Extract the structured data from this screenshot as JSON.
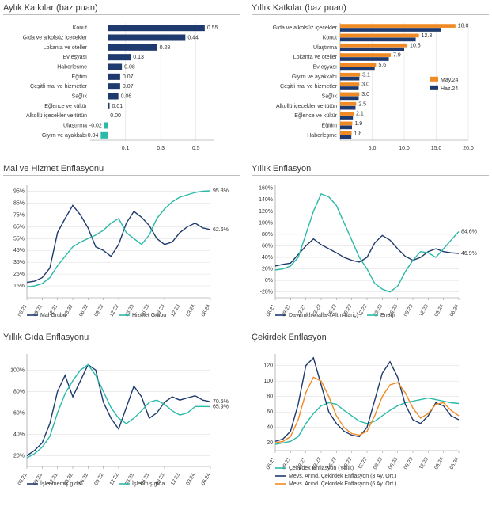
{
  "colors": {
    "navy": "#1f3a6e",
    "teal": "#2bb9a9",
    "orange": "#f08a24",
    "grid": "#d9d9d9",
    "axis": "#888888",
    "text": "#333333",
    "bg": "#ffffff"
  },
  "label_fontsize": 7,
  "title_fontsize": 11,
  "x_labels_quarterly": [
    "06.21",
    "09.21",
    "12.21",
    "03.22",
    "06.22",
    "09.22",
    "12.22",
    "03.23",
    "06.23",
    "09.23",
    "12.23",
    "03.24",
    "06.24"
  ],
  "panel_bar_left": {
    "title": "Aylık Katkılar (baz puan)",
    "type": "bar-horizontal",
    "bar_color_ref": "navy",
    "neg_bar_color_ref": "teal",
    "xlim": [
      -0.1,
      0.6
    ],
    "xticks": [
      0.1,
      0.3,
      0.5
    ],
    "categories": [
      {
        "label": "Konut",
        "value": 0.55
      },
      {
        "label": "Gıda ve alkolsüz içecekler",
        "value": 0.44
      },
      {
        "label": "Lokanta ve oteller",
        "value": 0.28
      },
      {
        "label": "Ev eşyası",
        "value": 0.13
      },
      {
        "label": "Haberleşme",
        "value": 0.08
      },
      {
        "label": "Eğitim",
        "value": 0.07
      },
      {
        "label": "Çeşitli mal ve hizmetler",
        "value": 0.07
      },
      {
        "label": "Sağlık",
        "value": 0.06
      },
      {
        "label": "Eğlence ve kültür",
        "value": 0.01
      },
      {
        "label": "Alkollü içecekler ve tütün",
        "value": 0.0
      },
      {
        "label": "Ulaştırma",
        "value": -0.02
      },
      {
        "label": "Giyim ve ayakkabı",
        "value": -0.04
      }
    ]
  },
  "panel_bar_right": {
    "title": "Yıllık Katkılar (baz puan)",
    "type": "bar-horizontal-group",
    "series": [
      {
        "label": "May.24",
        "color_ref": "orange"
      },
      {
        "label": "Haz.24",
        "color_ref": "navy"
      }
    ],
    "xlim": [
      0,
      20
    ],
    "xticks": [
      5.0,
      10.0,
      15.0,
      20.0
    ],
    "categories": [
      {
        "label": "Gıda ve alkolsüz içecekler",
        "values": [
          18.0,
          15.7
        ]
      },
      {
        "label": "Konut",
        "values": [
          12.3,
          11.8
        ]
      },
      {
        "label": "Ulaştırma",
        "values": [
          10.5,
          10.0
        ]
      },
      {
        "label": "Lokanta ve oteller",
        "values": [
          7.9,
          7.6
        ]
      },
      {
        "label": "Ev eşyası",
        "values": [
          5.6,
          5.4
        ]
      },
      {
        "label": "Giyim ve ayakkabı",
        "values": [
          3.1,
          3.0
        ]
      },
      {
        "label": "Çeşitli mal ve hizmetler",
        "values": [
          3.0,
          2.9
        ]
      },
      {
        "label": "Sağlık",
        "values": [
          3.0,
          2.9
        ]
      },
      {
        "label": "Alkollü içecekler ve tütün",
        "values": [
          2.5,
          2.4
        ]
      },
      {
        "label": "Eğlence ve kültür",
        "values": [
          2.1,
          2.0
        ]
      },
      {
        "label": "Eğitim",
        "values": [
          1.9,
          1.85
        ]
      },
      {
        "label": "Haberleşme",
        "values": [
          1.8,
          1.75
        ]
      }
    ]
  },
  "panel_mal_hizmet": {
    "title": "Mal ve Hizmet Enflasyonu",
    "type": "line",
    "ylim": [
      5,
      100
    ],
    "yticks": [
      15,
      25,
      35,
      45,
      55,
      65,
      75,
      85,
      95
    ],
    "series": [
      {
        "label": "Mal Grubu",
        "color_ref": "navy",
        "end_label": "62.6%",
        "y": [
          18,
          19,
          22,
          30,
          60,
          72,
          83,
          75,
          64,
          48,
          45,
          40,
          50,
          68,
          78,
          73,
          66,
          55,
          50,
          52,
          60,
          65,
          68,
          64,
          62.6
        ]
      },
      {
        "label": "Hizmet Grubu",
        "color_ref": "teal",
        "end_label": "95.3%",
        "y": [
          14,
          15,
          17,
          22,
          32,
          40,
          48,
          52,
          55,
          58,
          62,
          68,
          72,
          60,
          55,
          50,
          58,
          72,
          80,
          86,
          90,
          92,
          94,
          95,
          95.3
        ]
      }
    ]
  },
  "panel_yillik": {
    "title": "Yıllık Enflasyon",
    "type": "line",
    "ylim": [
      -30,
      165
    ],
    "yticks": [
      -20,
      0,
      20,
      40,
      60,
      80,
      100,
      120,
      140,
      160
    ],
    "series": [
      {
        "label": "Dayanıklı mallar (Altın hariç)",
        "color_ref": "navy",
        "end_label": "46.9%",
        "y": [
          25,
          28,
          30,
          45,
          60,
          72,
          62,
          55,
          48,
          40,
          35,
          32,
          40,
          65,
          78,
          70,
          55,
          42,
          35,
          40,
          50,
          55,
          50,
          48,
          46.9
        ]
      },
      {
        "label": "Enerji",
        "color_ref": "teal",
        "end_label": "84.6%",
        "y": [
          18,
          20,
          25,
          40,
          80,
          120,
          150,
          145,
          130,
          100,
          70,
          40,
          20,
          -5,
          -15,
          -20,
          -10,
          15,
          35,
          50,
          48,
          40,
          55,
          70,
          84.6
        ]
      }
    ]
  },
  "panel_gida": {
    "title": "Yıllık Gıda Enflasyonu",
    "type": "line",
    "ylim": [
      10,
      115
    ],
    "yticks": [
      20,
      40,
      60,
      80,
      100
    ],
    "series": [
      {
        "label": "İşlenmemiş gıda",
        "color_ref": "navy",
        "end_label": "70.5%",
        "y": [
          20,
          25,
          32,
          50,
          80,
          95,
          75,
          90,
          105,
          100,
          70,
          55,
          45,
          65,
          85,
          75,
          55,
          60,
          70,
          75,
          72,
          74,
          76,
          72,
          70.5
        ]
      },
      {
        "label": "İşlenmiş gıda",
        "color_ref": "teal",
        "end_label": "65.9%",
        "y": [
          18,
          22,
          28,
          38,
          60,
          78,
          90,
          100,
          105,
          95,
          80,
          65,
          55,
          50,
          55,
          62,
          70,
          72,
          68,
          62,
          58,
          60,
          66,
          66,
          65.9
        ]
      }
    ]
  },
  "panel_cekirdek": {
    "title": "Çekirdek Enflasyon",
    "type": "line",
    "ylim": [
      10,
      135
    ],
    "yticks": [
      20,
      40,
      60,
      80,
      100,
      120
    ],
    "series": [
      {
        "label": "Çekirdek Enflasyon (Yıllık)",
        "color_ref": "teal",
        "y": [
          18,
          20,
          22,
          28,
          45,
          58,
          68,
          72,
          70,
          62,
          55,
          48,
          45,
          48,
          55,
          62,
          68,
          72,
          74,
          76,
          78,
          76,
          74,
          72,
          71
        ]
      },
      {
        "label": "Mevs. Arınd. Çekirdek Enflasyon (3 Ay. Ort.)",
        "color_ref": "navy",
        "y": [
          22,
          25,
          35,
          70,
          120,
          130,
          95,
          60,
          45,
          35,
          30,
          28,
          40,
          75,
          110,
          125,
          105,
          70,
          50,
          45,
          55,
          72,
          68,
          55,
          50
        ]
      },
      {
        "label": "Mevs. Arınd. Çekirdek Enflasyon (6 Ay. Ort.)",
        "color_ref": "orange",
        "y": [
          20,
          22,
          28,
          50,
          85,
          105,
          100,
          80,
          55,
          40,
          32,
          30,
          35,
          55,
          80,
          95,
          98,
          85,
          65,
          52,
          58,
          70,
          72,
          62,
          55
        ]
      }
    ]
  }
}
